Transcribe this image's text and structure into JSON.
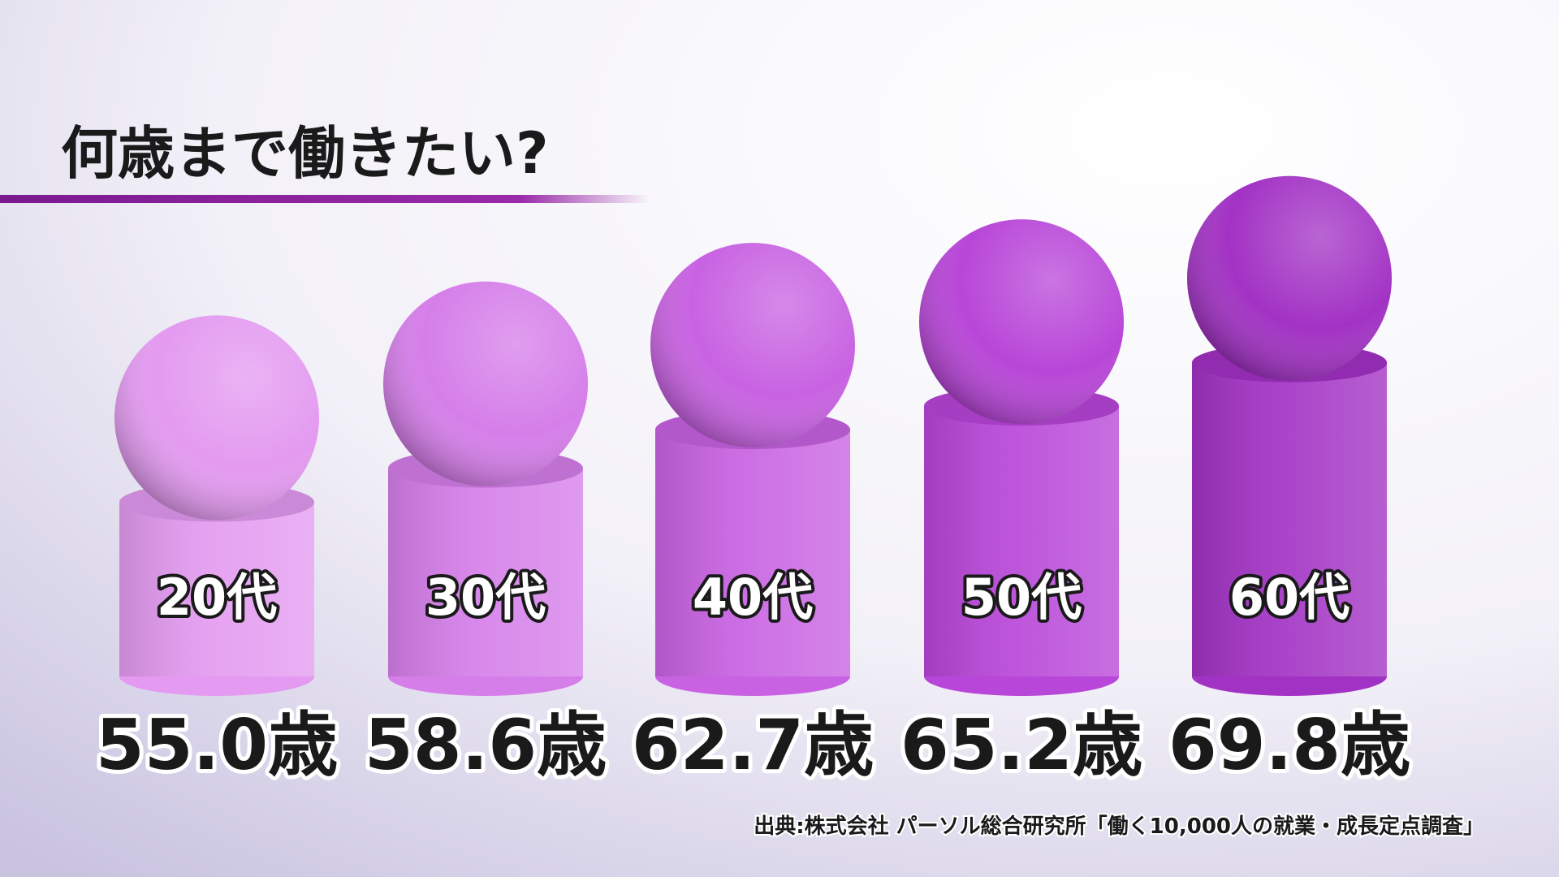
{
  "chart_data": {
    "type": "bar",
    "title": "何歳まで働きたい?",
    "categories": [
      "20代",
      "30代",
      "40代",
      "50代",
      "60代"
    ],
    "values": [
      55.0,
      58.6,
      62.7,
      65.2,
      69.8
    ],
    "value_labels": [
      "55.0歳",
      "58.6歳",
      "62.7歳",
      "65.2歳",
      "69.8歳"
    ],
    "colors": [
      "#e39af0",
      "#d57ee9",
      "#c862e2",
      "#b846d8",
      "#a232c4"
    ],
    "source": "出典:株式会社 パーソル総合研究所「働く10,000人の就業・成長定点調査」"
  }
}
